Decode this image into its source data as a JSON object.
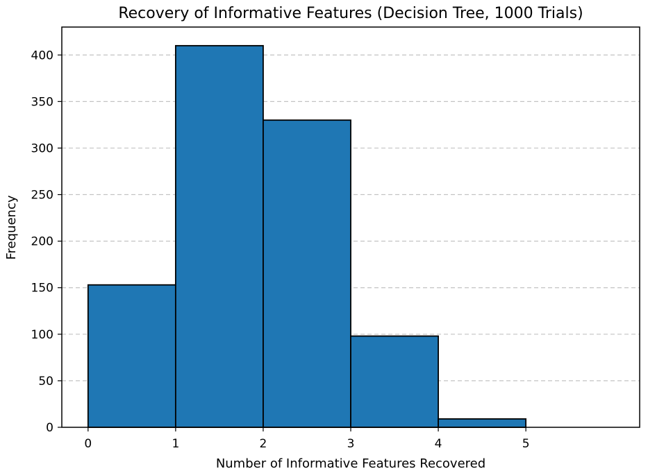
{
  "chart_data": {
    "type": "bar",
    "title": "Recovery of Informative Features (Decision Tree, 1000 Trials)",
    "xlabel": "Number of Informative Features Recovered",
    "ylabel": "Frequency",
    "bins": [
      {
        "start": 0,
        "end": 1,
        "value": 153
      },
      {
        "start": 1,
        "end": 2,
        "value": 410
      },
      {
        "start": 2,
        "end": 3,
        "value": 330
      },
      {
        "start": 3,
        "end": 4,
        "value": 98
      },
      {
        "start": 4,
        "end": 5,
        "value": 9
      }
    ],
    "xticks": [
      0,
      1,
      2,
      3,
      4,
      5
    ],
    "yticks": [
      0,
      50,
      100,
      150,
      200,
      250,
      300,
      350,
      400
    ],
    "xlim": [
      -0.3,
      6.3
    ],
    "ylim": [
      0,
      430
    ],
    "grid": "y-axis dashed",
    "bar_color": "#1f77b4",
    "edge_color": "#000000"
  }
}
